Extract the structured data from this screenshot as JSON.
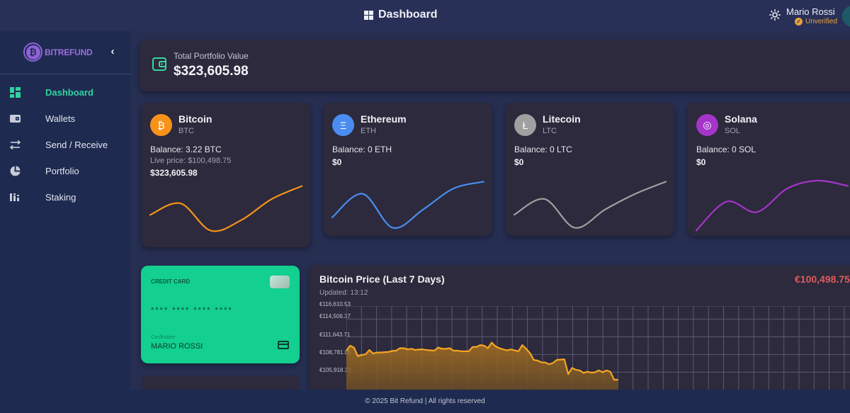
{
  "header": {
    "title": "Dashboard",
    "title_icon": "dashboard-grid-icon",
    "theme_icon": "sun-icon",
    "user_name": "Mario Rossi",
    "user_status": "Unverified",
    "status_color": "#e9a23b"
  },
  "sidebar": {
    "brand": "BITREFUND",
    "brand_color": "#9b6fe0",
    "collapse_icon": "chevron-left-icon",
    "items": [
      {
        "label": "Dashboard",
        "icon": "dashboard-icon",
        "active": true
      },
      {
        "label": "Wallets",
        "icon": "wallet-icon",
        "active": false
      },
      {
        "label": "Send / Receive",
        "icon": "arrows-exchange-icon",
        "active": false
      },
      {
        "label": "Portfolio",
        "icon": "pie-chart-icon",
        "active": false
      },
      {
        "label": "Staking",
        "icon": "bar-chart-icon",
        "active": false
      }
    ]
  },
  "portfolio": {
    "label": "Total Portfolio Value",
    "value": "$323,605.98"
  },
  "coins": [
    {
      "name": "Bitcoin",
      "symbol": "BTC",
      "glyph": "₿",
      "color": "#f7931a",
      "balance": "Balance: 3.22 BTC",
      "live_price": "Live price: $100,498.75",
      "usd": "$323,605.98",
      "trend": [
        40,
        62,
        10,
        30,
        70,
        95
      ]
    },
    {
      "name": "Ethereum",
      "symbol": "ETH",
      "glyph": "Ξ",
      "color": "#4a8df0",
      "balance": "Balance: 0 ETH",
      "usd": "$0",
      "trend": [
        30,
        75,
        10,
        45,
        85,
        98
      ]
    },
    {
      "name": "Litecoin",
      "symbol": "LTC",
      "glyph": "Ł",
      "color": "#a0a0a0",
      "balance": "Balance: 0 LTC",
      "usd": "$0",
      "trend": [
        35,
        65,
        10,
        45,
        75,
        98
      ]
    },
    {
      "name": "Solana",
      "symbol": "SOL",
      "glyph": "◎",
      "color": "#a534c9",
      "balance": "Balance: 0 SOL",
      "usd": "$0",
      "trend": [
        5,
        60,
        40,
        85,
        100,
        90
      ]
    }
  ],
  "credit_card": {
    "label": "CREDIT CARD",
    "number": "**** **** **** ****",
    "holder_label": "Cardholder",
    "holder": "MARIO ROSSI"
  },
  "price_chart": {
    "title": "Bitcoin Price (Last 7 Days)",
    "updated": "Updated: 13:12",
    "current_price": "€100,498.75",
    "current_price_color": "#e25a5a"
  },
  "chart_data": {
    "type": "area",
    "title": "Bitcoin Price (Last 7 Days)",
    "ylabel": "",
    "xlabel": "",
    "grid": true,
    "y_ticks": [
      "€116,610.53",
      "€114,506.37",
      "€111,643.71",
      "€108,781.05",
      "€105,918.39"
    ],
    "y_tick_values": [
      116610.53,
      114506.37,
      111643.71,
      108781.05,
      105918.39
    ],
    "color": "#f5a623",
    "values": [
      109400,
      110200,
      109900,
      108500,
      108700,
      108800,
      109500,
      108950,
      109100,
      109100,
      109150,
      109200,
      109350,
      109400,
      109800,
      109800,
      109600,
      109700,
      109500,
      109600,
      109600,
      109500,
      109450,
      109400,
      109900,
      109700,
      109700,
      109800,
      109400,
      109400,
      109300,
      109300,
      109300,
      110000,
      110000,
      110300,
      110200,
      109800,
      110700,
      110100,
      109800,
      109600,
      109450,
      109600,
      109450,
      109300,
      110300,
      109700,
      109000,
      107900,
      107800,
      107500,
      107500,
      107200,
      107400,
      107900,
      107950,
      108000,
      105600,
      106600,
      106300,
      106200,
      105800,
      106000,
      105850,
      105900,
      106200,
      105900,
      106200,
      106000,
      104700,
      104700
    ]
  },
  "footer": {
    "text": "© 2025 Bit Refund | All rights reserved"
  }
}
